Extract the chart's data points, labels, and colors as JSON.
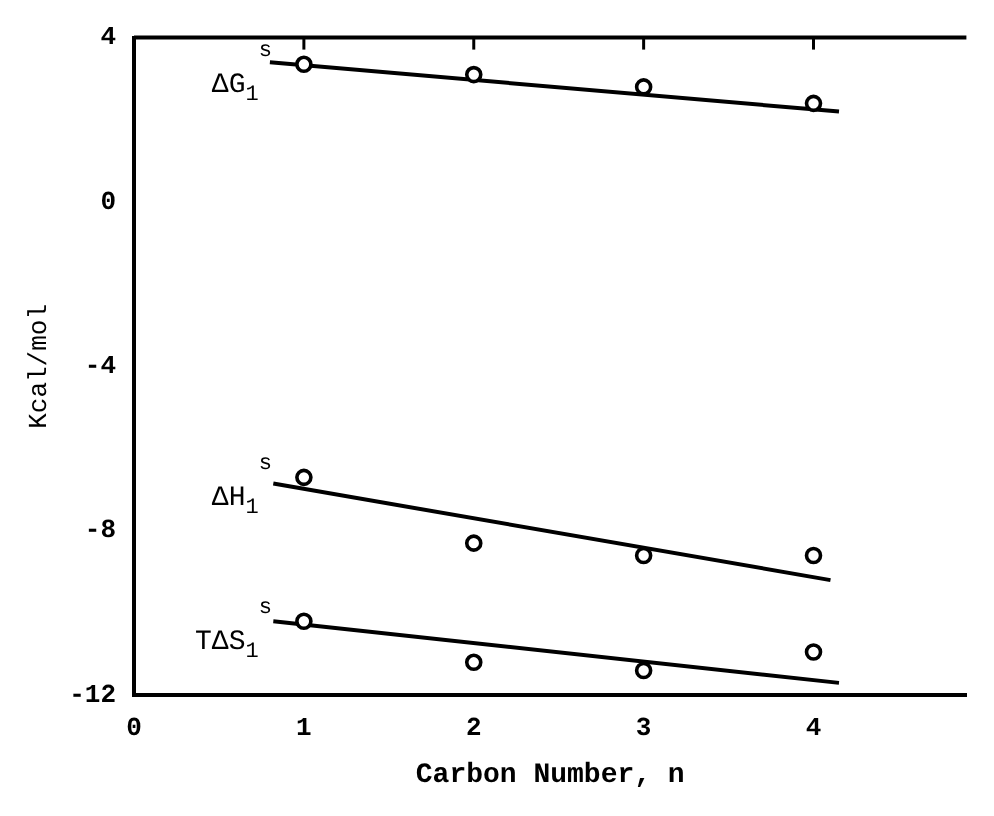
{
  "chart_data": {
    "type": "scatter",
    "xlabel": "Carbon Number, n",
    "ylabel": "Kcal/mol",
    "xlim": [
      0,
      4.9
    ],
    "xticks": [
      0,
      1,
      2,
      3,
      4
    ],
    "ylim": [
      -12,
      4
    ],
    "yticks": [
      4,
      0,
      -4,
      -8,
      -12
    ],
    "grid": false,
    "legend": "left",
    "marker": "circle",
    "series": [
      {
        "name": "ΔG$_{1}$$^{s}$",
        "color": "#000000",
        "x": [
          1,
          2,
          3,
          4
        ],
        "values": [
          3.35,
          3.1,
          2.8,
          2.4
        ]
      },
      {
        "name": "ΔH$_{1}$$^{s}$",
        "color": "#000000",
        "x": [
          1,
          2,
          3,
          4
        ],
        "values": [
          -6.7,
          -8.3,
          -8.6,
          -8.6
        ]
      },
      {
        "name": "TΔS$_{1}$$^{s}$",
        "color": "#000000",
        "x": [
          1,
          2,
          3,
          4
        ],
        "values": [
          -10.2,
          -11.2,
          -11.4,
          -10.95
        ]
      },
      {
        "type": "line",
        "color": "#000000",
        "marker": "none",
        "line_style": "solid",
        "x": [
          0.8,
          4.15
        ],
        "values": [
          3.4,
          2.2
        ]
      },
      {
        "type": "line",
        "color": "#000000",
        "marker": "none",
        "line_style": "solid",
        "x": [
          0.82,
          4.1
        ],
        "values": [
          -6.85,
          -9.2
        ]
      },
      {
        "type": "line",
        "color": "#000000",
        "marker": "none",
        "line_style": "solid",
        "x": [
          0.82,
          4.15
        ],
        "values": [
          -10.2,
          -11.7
        ]
      }
    ]
  }
}
